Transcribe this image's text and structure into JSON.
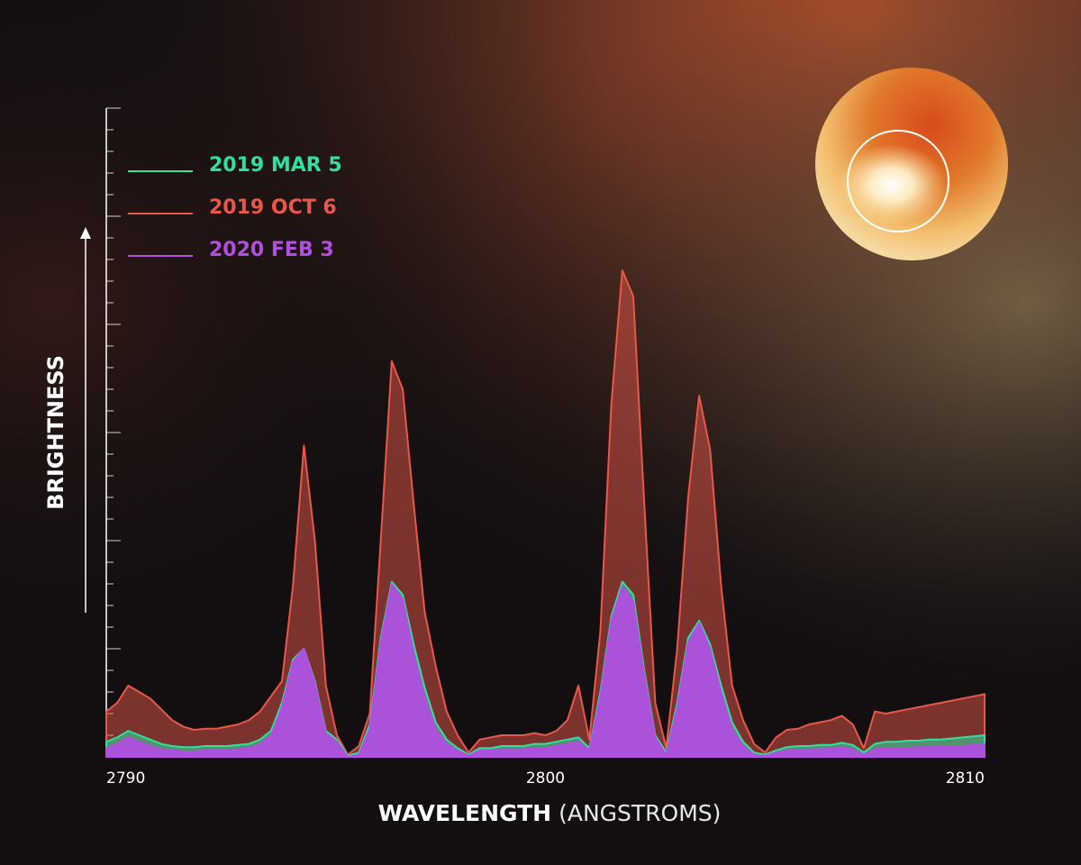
{
  "chart_data": {
    "type": "area",
    "x_label": "WAVELENGTH",
    "x_label_unit": "(ANGSTROMS)",
    "y_label": "BRIGHTNESS",
    "xlim": [
      2790,
      2810
    ],
    "xticks": [
      2790,
      2800,
      2810
    ],
    "ylim": [
      0,
      30
    ],
    "yticks": [
      0,
      1,
      2,
      3,
      4,
      5,
      6,
      7,
      8,
      9,
      10,
      11,
      12,
      13,
      14,
      15,
      16,
      17,
      18,
      19,
      20,
      21,
      22,
      23,
      24,
      25,
      26,
      27,
      28,
      29,
      30
    ],
    "x": [
      2790,
      2790.25,
      2790.5,
      2790.75,
      2791,
      2791.25,
      2791.5,
      2791.75,
      2792,
      2792.25,
      2792.5,
      2792.75,
      2793,
      2793.25,
      2793.5,
      2793.75,
      2794,
      2794.25,
      2794.5,
      2794.75,
      2795,
      2795.25,
      2795.5,
      2795.75,
      2796,
      2796.25,
      2796.5,
      2796.75,
      2797,
      2797.25,
      2797.5,
      2797.75,
      2798,
      2798.25,
      2798.5,
      2798.75,
      2799,
      2799.25,
      2799.5,
      2799.75,
      2800,
      2800.25,
      2800.5,
      2800.75,
      2801,
      2801.25,
      2801.5,
      2801.75,
      2802,
      2802.25,
      2802.5,
      2802.75,
      2803,
      2803.25,
      2803.5,
      2803.75,
      2804,
      2804.25,
      2804.5,
      2804.75,
      2805,
      2805.25,
      2805.5,
      2805.75,
      2806,
      2806.25,
      2806.5,
      2806.75,
      2807,
      2807.25,
      2807.5,
      2807.75,
      2808,
      2808.25,
      2808.5,
      2808.75,
      2809,
      2809.25,
      2809.5,
      2809.75,
      2810
    ],
    "series": [
      {
        "name": "2019 MAR 5",
        "color": "#2fe0a2",
        "values": [
          0.7,
          0.9,
          1.2,
          1.0,
          0.8,
          0.6,
          0.5,
          0.45,
          0.45,
          0.5,
          0.5,
          0.5,
          0.55,
          0.6,
          0.8,
          1.2,
          2.5,
          4.5,
          5.0,
          3.5,
          1.2,
          0.8,
          0.05,
          0.2,
          1.5,
          5.5,
          8.1,
          7.5,
          5.2,
          3.2,
          1.6,
          0.8,
          0.4,
          0.1,
          0.4,
          0.4,
          0.5,
          0.5,
          0.5,
          0.6,
          0.6,
          0.7,
          0.8,
          0.9,
          0.4,
          3,
          6.5,
          8.1,
          7.5,
          4,
          1,
          0.2,
          2.5,
          5.5,
          6.3,
          5.2,
          3.3,
          1.6,
          0.7,
          0.2,
          0.1,
          0.3,
          0.45,
          0.5,
          0.5,
          0.55,
          0.55,
          0.65,
          0.55,
          0.2,
          0.6,
          0.7,
          0.7,
          0.75,
          0.75,
          0.8,
          0.8,
          0.85,
          0.9,
          0.95,
          1.0
        ]
      },
      {
        "name": "2019 OCT 6",
        "color": "#e8584a",
        "values": [
          2.1,
          2.5,
          3.3,
          3.0,
          2.7,
          2.2,
          1.7,
          1.4,
          1.25,
          1.3,
          1.3,
          1.4,
          1.5,
          1.7,
          2.1,
          2.8,
          3.5,
          7.9,
          14.4,
          10,
          3.3,
          1.0,
          0.1,
          0.5,
          2,
          10,
          18.3,
          17,
          11.7,
          6.7,
          4.2,
          2.1,
          1,
          0.2,
          0.8,
          0.9,
          1,
          1,
          1,
          1.1,
          1,
          1.2,
          1.7,
          3.3,
          0.8,
          5.8,
          16.3,
          22.5,
          21.3,
          11.7,
          2.5,
          0.4,
          5,
          12,
          16.7,
          14.2,
          7.9,
          3.3,
          1.7,
          0.6,
          0.2,
          0.9,
          1.25,
          1.3,
          1.5,
          1.6,
          1.7,
          1.9,
          1.5,
          0.4,
          2.1,
          2.0,
          2.1,
          2.2,
          2.3,
          2.4,
          2.5,
          2.6,
          2.7,
          2.8,
          2.9
        ]
      },
      {
        "name": "2020 FEB 3",
        "color": "#b04fe0",
        "values": [
          0.4,
          0.6,
          0.9,
          0.7,
          0.5,
          0.35,
          0.3,
          0.25,
          0.25,
          0.3,
          0.3,
          0.3,
          0.35,
          0.4,
          0.6,
          1.0,
          2.3,
          4.4,
          5.0,
          3.4,
          1.1,
          0.7,
          0,
          0.1,
          1.3,
          5.3,
          8.0,
          7.3,
          4.8,
          2.8,
          1.3,
          0.6,
          0.3,
          0.05,
          0.3,
          0.3,
          0.35,
          0.35,
          0.35,
          0.4,
          0.4,
          0.5,
          0.6,
          0.7,
          0.3,
          2.8,
          6.3,
          7.9,
          7.2,
          3.8,
          0.9,
          0.1,
          2.3,
          5.3,
          6.2,
          5.0,
          3.0,
          1.3,
          0.5,
          0.1,
          0.05,
          0.2,
          0.3,
          0.3,
          0.35,
          0.35,
          0.4,
          0.45,
          0.35,
          0.1,
          0.35,
          0.4,
          0.4,
          0.4,
          0.45,
          0.45,
          0.5,
          0.5,
          0.5,
          0.55,
          0.6
        ]
      }
    ]
  }
}
